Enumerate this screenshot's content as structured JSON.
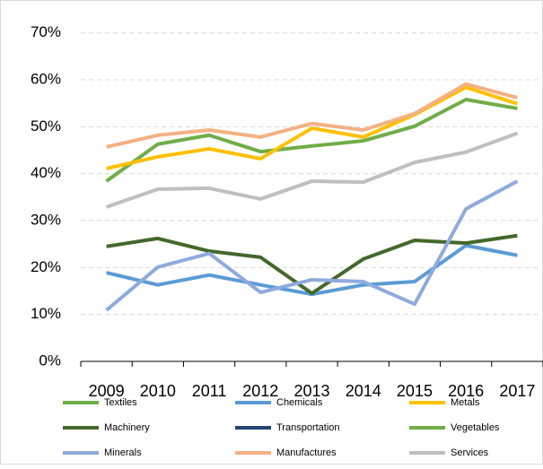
{
  "chart_data": {
    "type": "line",
    "categories": [
      "2009",
      "2010",
      "2011",
      "2012",
      "2013",
      "2014",
      "2015",
      "2016",
      "2017"
    ],
    "series": [
      {
        "name": "Textiles",
        "color": "#70ad47",
        "values": [
          38.4,
          46.3,
          48.2,
          44.7,
          45.9,
          47.0,
          50.1,
          55.8,
          53.9
        ]
      },
      {
        "name": "Chemicals",
        "color": "#5b9bd5",
        "values": [
          18.9,
          16.3,
          18.4,
          16.3,
          14.3,
          16.3,
          17.0,
          24.7,
          22.6
        ]
      },
      {
        "name": "Metals",
        "color": "#ffc000",
        "values": [
          41.1,
          43.6,
          45.3,
          43.2,
          49.7,
          47.8,
          52.6,
          58.4,
          54.9
        ]
      },
      {
        "name": "Machinery",
        "color": "#43682b",
        "values": [
          24.5,
          26.2,
          23.5,
          22.2,
          14.5,
          21.8,
          25.8,
          25.2,
          26.8
        ]
      },
      {
        "name": "Transportation",
        "color": "#264478",
        "values": [
          null,
          null,
          null,
          null,
          null,
          null,
          null,
          null,
          null
        ]
      },
      {
        "name": "Vegetables",
        "color": "#70ad47",
        "values": [
          null,
          null,
          null,
          null,
          null,
          null,
          null,
          null,
          null
        ]
      },
      {
        "name": "Minerals",
        "color": "#8faadc",
        "values": [
          10.9,
          20.1,
          23.0,
          14.7,
          17.4,
          17.0,
          12.2,
          32.5,
          38.4
        ]
      },
      {
        "name": "Manufactures",
        "color": "#f4b183",
        "values": [
          45.7,
          48.2,
          49.3,
          47.8,
          50.7,
          49.3,
          52.8,
          59.1,
          56.2
        ]
      },
      {
        "name": "Services",
        "color": "#bfbfbf",
        "values": [
          32.9,
          36.7,
          36.9,
          34.6,
          38.4,
          38.2,
          42.4,
          44.6,
          48.6
        ]
      }
    ],
    "ylim": [
      0,
      70
    ],
    "yticks": [
      {
        "value": 0,
        "label": "0%"
      },
      {
        "value": 10,
        "label": "10%"
      },
      {
        "value": 20,
        "label": "20%"
      },
      {
        "value": 30,
        "label": "30%"
      },
      {
        "value": 40,
        "label": "40%"
      },
      {
        "value": 50,
        "label": "50%"
      },
      {
        "value": 60,
        "label": "60%"
      },
      {
        "value": 70,
        "label": "70%"
      }
    ],
    "grid": true
  }
}
